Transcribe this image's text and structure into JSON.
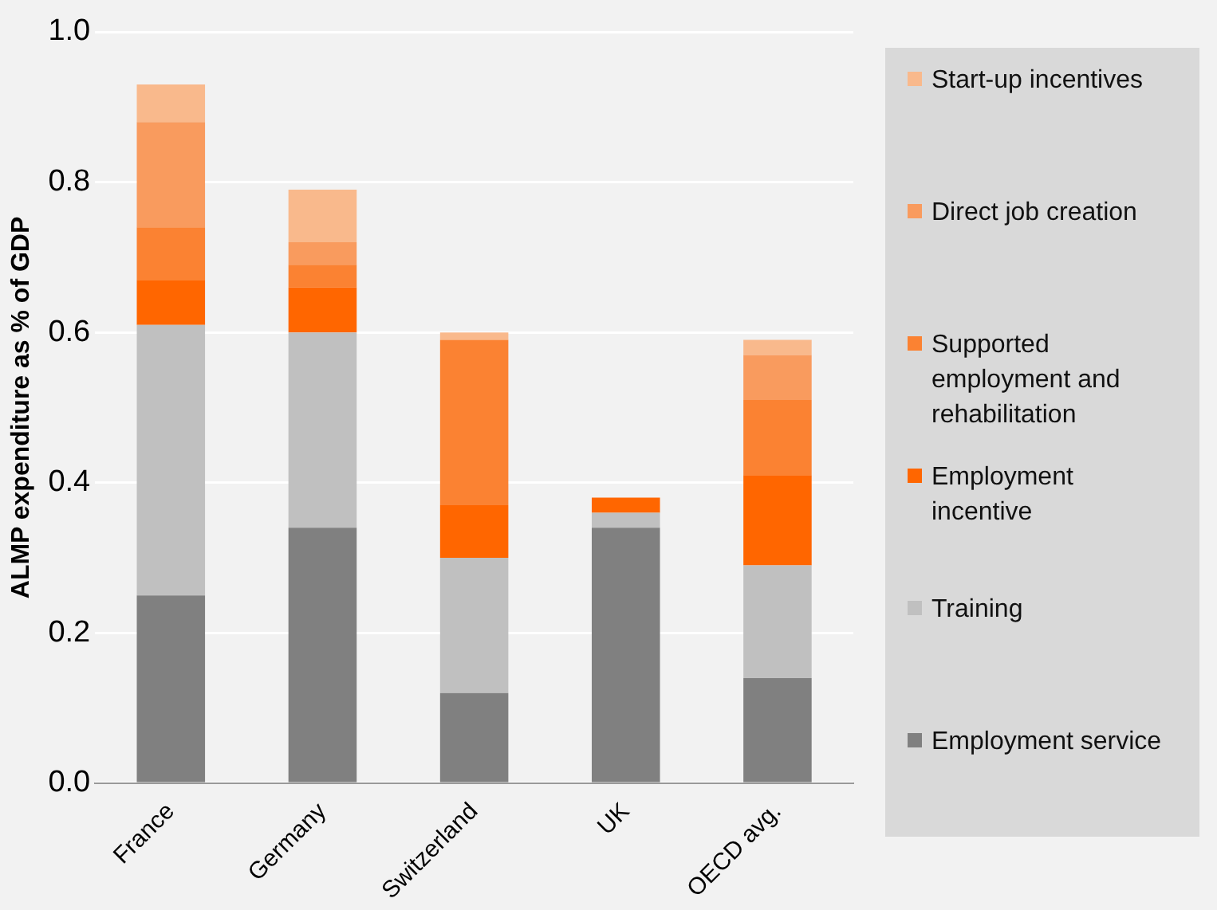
{
  "chart_data": {
    "type": "bar",
    "stacked": true,
    "ylabel": "ALMP expenditure as % of GDP",
    "categories": [
      "France",
      "Germany",
      "Switzerland",
      "UK",
      "OECD avg."
    ],
    "series": [
      {
        "name": "Employment service",
        "color": "#808080",
        "values": [
          0.25,
          0.34,
          0.12,
          0.34,
          0.14
        ]
      },
      {
        "name": "Training",
        "color": "#c0c0c0",
        "values": [
          0.36,
          0.26,
          0.18,
          0.02,
          0.15
        ]
      },
      {
        "name": "Employment incentive",
        "color": "#ff6600",
        "values": [
          0.06,
          0.06,
          0.07,
          0.02,
          0.12
        ]
      },
      {
        "name": "Supported employment and rehabilitation",
        "color": "#fb8232",
        "values": [
          0.07,
          0.03,
          0.22,
          0,
          0.1
        ]
      },
      {
        "name": "Direct job creation",
        "color": "#f99b5e",
        "values": [
          0.14,
          0.03,
          0,
          0,
          0.06
        ]
      },
      {
        "name": "Start-up incentives",
        "color": "#f9b98c",
        "values": [
          0.05,
          0.07,
          0.01,
          0,
          0.02
        ]
      }
    ],
    "ylim": [
      0,
      1
    ],
    "yticks": [
      {
        "value": 0,
        "label": "0.0"
      },
      {
        "value": 0.2,
        "label": "0.2"
      },
      {
        "value": 0.4,
        "label": "0.4"
      },
      {
        "value": 0.6,
        "label": "0.6"
      },
      {
        "value": 0.8,
        "label": "0.8"
      },
      {
        "value": 1,
        "label": "1.0"
      }
    ],
    "grid": "y",
    "legend": "right"
  }
}
